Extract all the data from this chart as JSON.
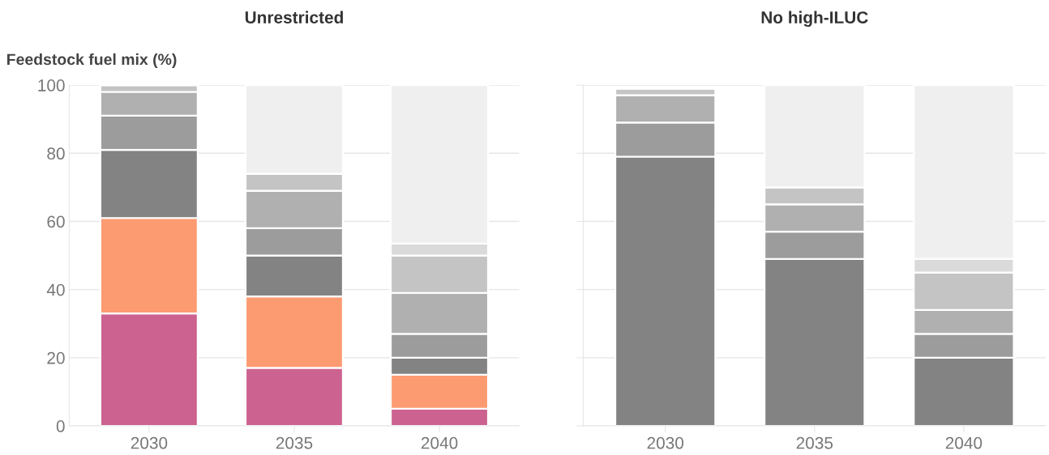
{
  "chart_data": [
    {
      "type": "bar",
      "title": "Unrestricted",
      "ylabel": "Feedstock fuel mix (%)",
      "categories": [
        "2030",
        "2035",
        "2040"
      ],
      "stacked": true,
      "ylim": [
        0,
        100
      ],
      "yticks": [
        0,
        20,
        40,
        60,
        80,
        100
      ],
      "grid": "y",
      "series": [
        {
          "color": "#cc6290",
          "values": [
            33,
            17,
            5
          ]
        },
        {
          "color": "#fc9b72",
          "values": [
            28,
            21,
            10
          ]
        },
        {
          "color": "#838383",
          "values": [
            20,
            12,
            5
          ]
        },
        {
          "color": "#9c9c9c",
          "values": [
            10,
            8,
            7
          ]
        },
        {
          "color": "#b0b0b0",
          "values": [
            7,
            11,
            12
          ]
        },
        {
          "color": "#c4c4c4",
          "values": [
            2,
            5,
            11
          ]
        },
        {
          "color": "#dadada",
          "values": [
            0,
            null,
            3.5
          ]
        },
        {
          "color": "#efefef",
          "values": [
            0,
            26,
            46.5
          ]
        }
      ]
    },
    {
      "type": "bar",
      "title": "No high-ILUC",
      "categories": [
        "2030",
        "2035",
        "2040"
      ],
      "stacked": true,
      "ylim": [
        0,
        100
      ],
      "yticks": [
        0,
        20,
        40,
        60,
        80,
        100
      ],
      "grid": "y",
      "tick_labels": "x",
      "series": [
        {
          "color": "#838383",
          "values": [
            79,
            49,
            20
          ]
        },
        {
          "color": "#9c9c9c",
          "values": [
            10,
            8,
            7
          ]
        },
        {
          "color": "#b0b0b0",
          "values": [
            8,
            8,
            7
          ]
        },
        {
          "color": "#c4c4c4",
          "values": [
            2,
            5,
            11
          ]
        },
        {
          "color": "#dadada",
          "values": [
            0,
            null,
            4
          ]
        },
        {
          "color": "#efefef",
          "values": [
            0,
            30,
            51
          ]
        }
      ]
    }
  ]
}
